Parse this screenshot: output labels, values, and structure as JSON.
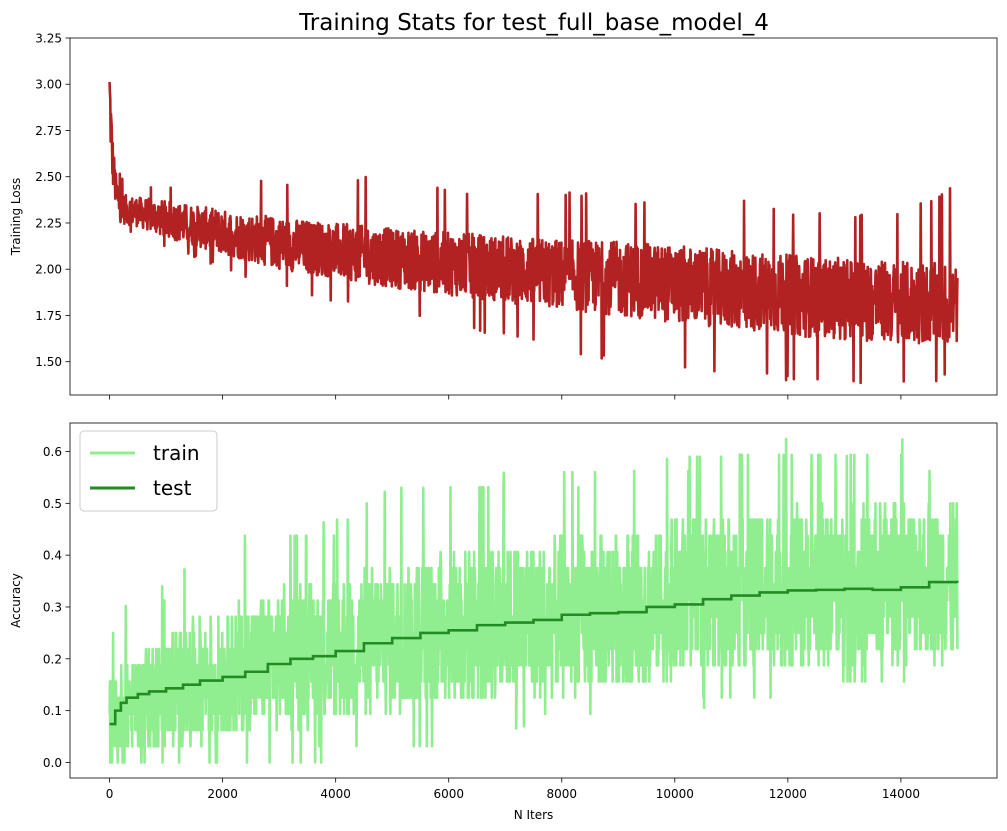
{
  "figure": {
    "title": "Training Stats for test_full_base_model_4"
  },
  "chart_data": [
    {
      "type": "line",
      "title": "Training Stats for test_full_base_model_4",
      "xlabel": "",
      "ylabel": "Training Loss",
      "xlim": [
        -700,
        15700
      ],
      "ylim": [
        1.32,
        3.25
      ],
      "xticks": [
        0,
        2000,
        4000,
        6000,
        8000,
        10000,
        12000,
        14000
      ],
      "yticks": [
        1.5,
        1.75,
        2.0,
        2.25,
        2.5,
        2.75,
        3.0,
        3.25
      ],
      "ytick_labels": [
        "1.50",
        "1.75",
        "2.00",
        "2.25",
        "2.50",
        "2.75",
        "3.00",
        "3.25"
      ],
      "show_xtick_labels": false,
      "grid": false,
      "legend": "none",
      "series": [
        {
          "color": "#b22222",
          "style": "noisy",
          "x": [
            0,
            20,
            50,
            100,
            150,
            200,
            300,
            500,
            1000,
            2000,
            3000,
            4000,
            5000,
            6000,
            7000,
            8000,
            9000,
            10000,
            11000,
            12000,
            13000,
            14000,
            15000
          ],
          "mean": [
            2.95,
            2.8,
            2.6,
            2.45,
            2.36,
            2.33,
            2.32,
            2.31,
            2.27,
            2.2,
            2.14,
            2.1,
            2.06,
            2.03,
            2.0,
            1.97,
            1.95,
            1.92,
            1.89,
            1.86,
            1.84,
            1.82,
            1.81
          ],
          "amplitude": [
            0.2,
            0.18,
            0.14,
            0.1,
            0.08,
            0.08,
            0.08,
            0.08,
            0.1,
            0.12,
            0.14,
            0.15,
            0.16,
            0.17,
            0.18,
            0.19,
            0.2,
            0.21,
            0.21,
            0.22,
            0.22,
            0.22,
            0.22
          ],
          "min": [
            2.6,
            2.5,
            2.4,
            2.3,
            2.22,
            2.2,
            2.2,
            2.2,
            2.12,
            2.0,
            1.9,
            1.82,
            1.76,
            1.7,
            1.63,
            1.55,
            1.5,
            1.45,
            1.42,
            1.39,
            1.37,
            1.36,
            1.4
          ],
          "max": [
            3.18,
            3.05,
            2.9,
            2.7,
            2.55,
            2.5,
            2.48,
            2.45,
            2.45,
            2.48,
            2.48,
            2.45,
            2.55,
            2.44,
            2.43,
            2.44,
            2.38,
            2.4,
            2.4,
            2.32,
            2.3,
            2.3,
            2.46
          ]
        }
      ]
    },
    {
      "type": "line",
      "title": "",
      "xlabel": "N Iters",
      "ylabel": "Accuracy",
      "xlim": [
        -700,
        15700
      ],
      "ylim": [
        -0.03,
        0.655
      ],
      "xticks": [
        0,
        2000,
        4000,
        6000,
        8000,
        10000,
        12000,
        14000
      ],
      "yticks": [
        0.0,
        0.1,
        0.2,
        0.3,
        0.4,
        0.5,
        0.6
      ],
      "ytick_labels": [
        "0.0",
        "0.1",
        "0.2",
        "0.3",
        "0.4",
        "0.5",
        "0.6"
      ],
      "show_xtick_labels": true,
      "grid": false,
      "legend": "upper-left",
      "series": [
        {
          "name": "train",
          "color": "#90ee90",
          "style": "noisy",
          "x": [
            0,
            500,
            1000,
            2000,
            3000,
            4000,
            5000,
            6000,
            7000,
            8000,
            9000,
            10000,
            11000,
            12000,
            13000,
            14000,
            15000
          ],
          "mean": [
            0.08,
            0.12,
            0.14,
            0.17,
            0.2,
            0.22,
            0.24,
            0.26,
            0.27,
            0.28,
            0.3,
            0.31,
            0.33,
            0.34,
            0.34,
            0.35,
            0.35
          ],
          "amplitude": [
            0.08,
            0.1,
            0.11,
            0.12,
            0.13,
            0.14,
            0.14,
            0.15,
            0.15,
            0.15,
            0.15,
            0.15,
            0.15,
            0.15,
            0.15,
            0.15,
            0.15
          ],
          "min": [
            0.0,
            0.0,
            0.0,
            0.0,
            0.0,
            0.0,
            0.03,
            0.03,
            0.06,
            0.09,
            0.09,
            0.09,
            0.12,
            0.12,
            0.15,
            0.15,
            0.15
          ],
          "max": [
            0.25,
            0.34,
            0.34,
            0.44,
            0.44,
            0.47,
            0.53,
            0.53,
            0.56,
            0.56,
            0.56,
            0.59,
            0.59,
            0.625,
            0.59,
            0.625,
            0.56
          ],
          "quantum": 0.03125
        },
        {
          "name": "test",
          "color": "#228b22",
          "style": "step",
          "x": [
            0,
            100,
            200,
            300,
            500,
            700,
            1000,
            1300,
            1600,
            2000,
            2400,
            2800,
            3200,
            3600,
            4000,
            4500,
            5000,
            5500,
            6000,
            6500,
            7000,
            7500,
            8000,
            8500,
            9000,
            9500,
            10000,
            10500,
            11000,
            11500,
            12000,
            12500,
            13000,
            13500,
            14000,
            14500,
            15000
          ],
          "y": [
            0.074,
            0.1,
            0.115,
            0.125,
            0.132,
            0.137,
            0.143,
            0.15,
            0.158,
            0.165,
            0.175,
            0.19,
            0.2,
            0.205,
            0.215,
            0.23,
            0.24,
            0.25,
            0.255,
            0.265,
            0.27,
            0.275,
            0.285,
            0.288,
            0.29,
            0.3,
            0.305,
            0.315,
            0.322,
            0.328,
            0.332,
            0.333,
            0.335,
            0.333,
            0.338,
            0.348,
            0.347
          ]
        }
      ]
    }
  ]
}
